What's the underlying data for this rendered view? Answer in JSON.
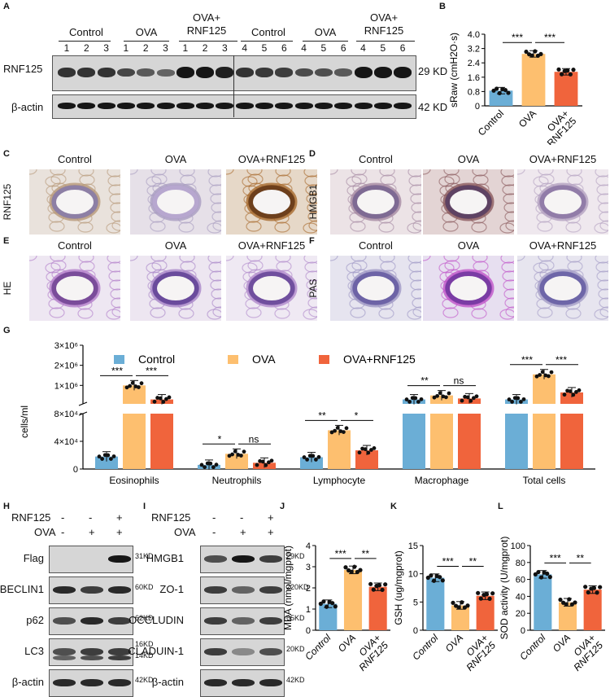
{
  "panel_labels": {
    "A": "A",
    "B": "B",
    "C": "C",
    "D": "D",
    "E": "E",
    "F": "F",
    "G": "G",
    "H": "H",
    "I": "I",
    "J": "J",
    "K": "K",
    "L": "L"
  },
  "panelA": {
    "groups": [
      "Control",
      "OVA",
      "OVA+\nRNF125",
      "Control",
      "OVA",
      "OVA+\nRNF125"
    ],
    "lanes": [
      "1",
      "2",
      "3",
      "1",
      "2",
      "3",
      "1",
      "2",
      "3",
      "4",
      "5",
      "6",
      "4",
      "5",
      "6",
      "4",
      "5",
      "6"
    ],
    "rows": [
      {
        "label": "RNF125",
        "kd": "29 KD"
      },
      {
        "label": "β-actin",
        "kd": "42 KD"
      }
    ]
  },
  "stains": {
    "C": {
      "side": "RNF125",
      "titles": [
        "Control",
        "OVA",
        "OVA+RNF125"
      ]
    },
    "D": {
      "side": "HMGB1",
      "titles": [
        "Control",
        "OVA",
        "OVA+RNF125"
      ]
    },
    "E": {
      "side": "HE",
      "titles": [
        "Control",
        "OVA",
        "OVA+RNF125"
      ]
    },
    "F": {
      "side": "PAS",
      "titles": [
        "Control",
        "OVA",
        "OVA+RNF125"
      ]
    }
  },
  "panelH": {
    "signs": {
      "rnf": "RNF125",
      "ova": "OVA",
      "rnf_vals": [
        "-",
        "-",
        "+"
      ],
      "ova_vals": [
        "-",
        "+",
        "+"
      ]
    },
    "rows": [
      {
        "label": "Flag",
        "kd": "31KD"
      },
      {
        "label": "BECLIN1",
        "kd": "60KD"
      },
      {
        "label": "p62",
        "kd": "62KD"
      },
      {
        "label": "LC3",
        "kd": "16KD",
        "kd2": "14KD"
      },
      {
        "label": "β-actin",
        "kd": "42KD"
      }
    ]
  },
  "panelI": {
    "signs": {
      "rnf": "RNF125",
      "ova": "OVA",
      "rnf_vals": [
        "-",
        "-",
        "+"
      ],
      "ova_vals": [
        "-",
        "+",
        "+"
      ]
    },
    "rows": [
      {
        "label": "HMGB1",
        "kd": "29KD"
      },
      {
        "label": "ZO-1",
        "kd": "220KD"
      },
      {
        "label": "OCCLUDIN",
        "kd": "65KD"
      },
      {
        "label": "CLADUIN-1",
        "kd": "20KD"
      },
      {
        "label": "β-actin",
        "kd": "42KD"
      }
    ]
  },
  "colors": {
    "control": "#6baed6",
    "ova": "#fdbf6f",
    "rnf": "#f0643c"
  },
  "chart_data": [
    {
      "id": "B",
      "type": "bar",
      "categories": [
        "Control",
        "OVA",
        "OVA+\nRNF125"
      ],
      "values": [
        0.85,
        2.9,
        1.9
      ],
      "ylabel": "sRaw (cmH2O·s)",
      "ylim": [
        0,
        4
      ],
      "yticks": [
        "0",
        "0.8",
        "1.6",
        "2.4",
        "3.2",
        "4.0"
      ],
      "sig": [
        {
          "from": 0,
          "to": 1,
          "label": "***"
        },
        {
          "from": 1,
          "to": 2,
          "label": "***"
        }
      ]
    },
    {
      "id": "G",
      "type": "bar",
      "categories": [
        "Eosinophils",
        "Neutrophils",
        "Lymphocyte",
        "Macrophage",
        "Total cells"
      ],
      "ylabel": "cells/ml",
      "yticks_low": [
        "0",
        "4×10⁴",
        "8×10⁴"
      ],
      "yticks_high": [
        "1×10⁶",
        "2×10⁶",
        "3×10⁶"
      ],
      "series": [
        {
          "name": "Control",
          "values": [
            18000,
            6000,
            17000,
            300000,
            300000
          ]
        },
        {
          "name": "OVA",
          "values": [
            1000000,
            22000,
            56000,
            500000,
            1550000
          ]
        },
        {
          "name": "OVA+RNF125",
          "values": [
            300000,
            9000,
            27000,
            350000,
            650000
          ]
        }
      ],
      "sig": [
        {
          "cat": 0,
          "a": "***",
          "b": "***"
        },
        {
          "cat": 1,
          "a": "*",
          "b": "ns"
        },
        {
          "cat": 2,
          "a": "**",
          "b": "*"
        },
        {
          "cat": 3,
          "a": "**",
          "b": "ns"
        },
        {
          "cat": 4,
          "a": "***",
          "b": "***"
        }
      ]
    },
    {
      "id": "J",
      "type": "bar",
      "categories": [
        "Control",
        "OVA",
        "OVA+\nRNF125"
      ],
      "values": [
        1.25,
        2.85,
        2.05
      ],
      "ylabel": "MDA (nmol/mgprot)",
      "ylim": [
        0,
        4
      ],
      "yticks": [
        "0",
        "1",
        "2",
        "3",
        "4"
      ],
      "sig": [
        {
          "from": 0,
          "to": 1,
          "label": "***"
        },
        {
          "from": 1,
          "to": 2,
          "label": "**"
        }
      ]
    },
    {
      "id": "K",
      "type": "bar",
      "categories": [
        "Control",
        "OVA",
        "OVA+\nRNF125"
      ],
      "values": [
        9.3,
        4.4,
        6.1
      ],
      "ylabel": "GSH (ug/mgprot)",
      "ylim": [
        0,
        15
      ],
      "yticks": [
        "0",
        "5",
        "10",
        "15"
      ],
      "sig": [
        {
          "from": 0,
          "to": 1,
          "label": "***"
        },
        {
          "from": 1,
          "to": 2,
          "label": "**"
        }
      ]
    },
    {
      "id": "L",
      "type": "bar",
      "categories": [
        "Control",
        "OVA",
        "OVA+\nRNF125"
      ],
      "values": [
        66,
        33,
        48
      ],
      "ylabel": "SOD activity (U/mgprot)",
      "ylim": [
        0,
        100
      ],
      "yticks": [
        "0",
        "20",
        "40",
        "60",
        "80",
        "100"
      ],
      "sig": [
        {
          "from": 0,
          "to": 1,
          "label": "***"
        },
        {
          "from": 1,
          "to": 2,
          "label": "**"
        }
      ]
    }
  ]
}
